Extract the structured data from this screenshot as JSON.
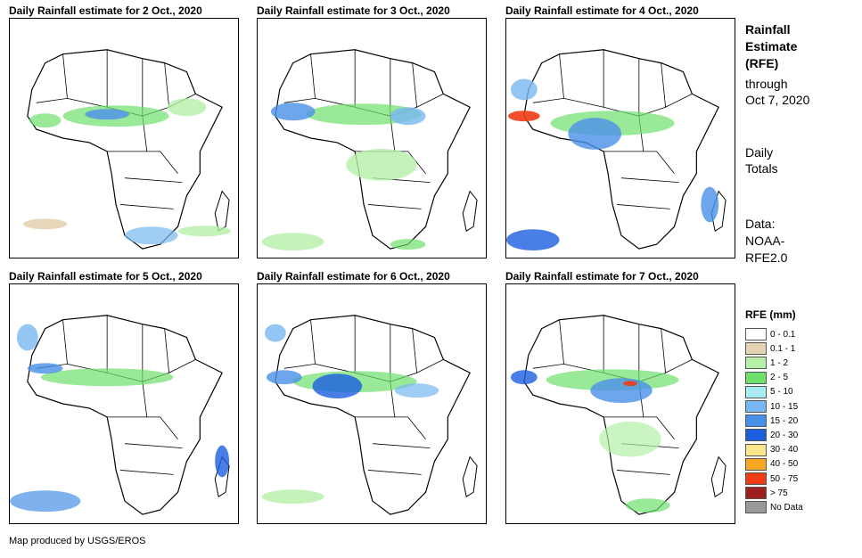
{
  "panels": [
    {
      "title": "Daily Rainfall estimate for 2 Oct., 2020"
    },
    {
      "title": "Daily Rainfall estimate for 3 Oct., 2020"
    },
    {
      "title": "Daily Rainfall estimate for 4 Oct., 2020"
    },
    {
      "title": "Daily Rainfall estimate for 5 Oct., 2020"
    },
    {
      "title": "Daily Rainfall estimate for 6 Oct., 2020"
    },
    {
      "title": "Daily Rainfall estimate for 7 Oct., 2020"
    }
  ],
  "side": {
    "title_line1": "Rainfall",
    "title_line2": "Estimate",
    "title_line3": "(RFE)",
    "through": "through",
    "date": "Oct 7, 2020",
    "daily1": "Daily",
    "daily2": "Totals",
    "data1": "Data:",
    "data2": "NOAA-",
    "data3": "RFE2.0"
  },
  "legend": {
    "title": "RFE (mm)",
    "items": [
      {
        "label": "0 - 0.1",
        "color": "#ffffff"
      },
      {
        "label": "0.1 - 1",
        "color": "#e6d3b3"
      },
      {
        "label": "1 - 2",
        "color": "#b4f0a8"
      },
      {
        "label": "2 - 5",
        "color": "#6ee06e"
      },
      {
        "label": "5 - 10",
        "color": "#a8ecf4"
      },
      {
        "label": "10 - 15",
        "color": "#78b8f0"
      },
      {
        "label": "15 - 20",
        "color": "#4a90e8"
      },
      {
        "label": "20 - 30",
        "color": "#1c5ee0"
      },
      {
        "label": "30 - 40",
        "color": "#fae68c"
      },
      {
        "label": "40 - 50",
        "color": "#f5a623"
      },
      {
        "label": "50 - 75",
        "color": "#f03c14"
      },
      {
        "label": "> 75",
        "color": "#a01e1e"
      },
      {
        "label": "No Data",
        "color": "#999999"
      }
    ]
  },
  "credit": "Map produced by USGS/EROS"
}
